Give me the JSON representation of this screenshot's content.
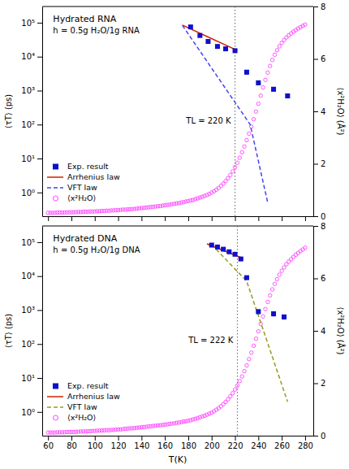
{
  "chart_data": [
    {
      "type": "scatter",
      "title": "Hydrated RNA",
      "subtitle": "h = 0.5g H₂O/1g RNA",
      "y_label": "⟨τT⟩ (ps)",
      "y2_label": "⟨x²H₂O⟩ (Å²)",
      "xlim": [
        55,
        287
      ],
      "xticks": [
        60,
        80,
        100,
        120,
        140,
        160,
        180,
        200,
        220,
        240,
        260,
        280
      ],
      "ylim": [
        0.2,
        300000
      ],
      "yticks": [
        {
          "value": 1,
          "label": "10⁰"
        },
        {
          "value": 10,
          "label": "10¹"
        },
        {
          "value": 100,
          "label": "10²"
        },
        {
          "value": 1000,
          "label": "10³"
        },
        {
          "value": 10000,
          "label": "10⁴"
        },
        {
          "value": 100000,
          "label": "10⁵"
        }
      ],
      "y2lim": [
        0,
        8
      ],
      "y2ticks": [
        0,
        2,
        4,
        6,
        8
      ],
      "log": "y",
      "legend": "lower left",
      "tick_labels": "y",
      "reference_line": {
        "x": 220,
        "label": "TL = 220 K",
        "color": "#666666",
        "line_style": "dotted"
      },
      "series": [
        {
          "name": "Exp. result",
          "type": "scatter",
          "marker": "square",
          "color": "#1010CC",
          "x": [
            182,
            190,
            197,
            205,
            212,
            220,
            230,
            240,
            253,
            265
          ],
          "values": [
            75000,
            42000,
            28000,
            20000,
            17000,
            15000,
            3500,
            1700,
            1100,
            700
          ],
          "errors": [
            6000,
            3360,
            2240,
            1600,
            1360,
            1500,
            420,
            204,
            132,
            84
          ]
        },
        {
          "name": "Arrhenius law",
          "type": "line",
          "line_style": "solid",
          "color": "#CC2200",
          "x": [
            175,
            222
          ],
          "values": [
            85113.80382023765,
            15135.612484362082
          ]
        },
        {
          "name": "VFT law",
          "type": "line",
          "line_style": "dashed",
          "color": "#4444EE",
          "x": [
            175,
            233,
            248
          ],
          "values": [
            83176.37711026709,
            100,
            0.5011872336272722
          ]
        },
        {
          "name": "⟨x²H₂O⟩",
          "type": "scatter",
          "marker": "open_circle",
          "color": "#FF44FF",
          "axis": "y2",
          "x": [
            60,
            62,
            64,
            66,
            68,
            70,
            72,
            74,
            76,
            78,
            80,
            82,
            84,
            86,
            88,
            90,
            92,
            94,
            96,
            98,
            100,
            102,
            104,
            106,
            108,
            110,
            112,
            114,
            116,
            118,
            120,
            122,
            124,
            126,
            128,
            130,
            132,
            134,
            136,
            138,
            140,
            142,
            144,
            146,
            148,
            150,
            152,
            154,
            156,
            158,
            160,
            162,
            164,
            166,
            168,
            170,
            172,
            174,
            176,
            178,
            180,
            182,
            184,
            186,
            188,
            190,
            192,
            194,
            196,
            198,
            200,
            202,
            204,
            206,
            208,
            210,
            212,
            214,
            216,
            218,
            220,
            222,
            224,
            226,
            228,
            230,
            232,
            234,
            236,
            238,
            240,
            242,
            244,
            246,
            248,
            250,
            252,
            254,
            256,
            258,
            260,
            262,
            264,
            266,
            268,
            270,
            272,
            274,
            276,
            278,
            280
          ],
          "values": [
            0.13,
            0.13,
            0.13,
            0.13,
            0.14,
            0.14,
            0.14,
            0.14,
            0.15,
            0.15,
            0.15,
            0.15,
            0.16,
            0.16,
            0.16,
            0.17,
            0.17,
            0.17,
            0.18,
            0.18,
            0.18,
            0.19,
            0.19,
            0.2,
            0.2,
            0.21,
            0.21,
            0.22,
            0.22,
            0.23,
            0.23,
            0.24,
            0.25,
            0.25,
            0.26,
            0.27,
            0.27,
            0.28,
            0.29,
            0.3,
            0.31,
            0.32,
            0.33,
            0.34,
            0.35,
            0.36,
            0.37,
            0.38,
            0.39,
            0.4,
            0.42,
            0.43,
            0.44,
            0.46,
            0.47,
            0.49,
            0.5,
            0.52,
            0.54,
            0.56,
            0.58,
            0.6,
            0.62,
            0.65,
            0.68,
            0.71,
            0.74,
            0.77,
            0.81,
            0.85,
            0.9,
            0.95,
            1.01,
            1.08,
            1.16,
            1.24,
            1.34,
            1.45,
            1.57,
            1.71,
            1.87,
            2.04,
            2.23,
            2.44,
            2.66,
            2.9,
            3.15,
            3.42,
            3.7,
            3.99,
            4.29,
            4.6,
            4.91,
            5.2,
            5.48,
            5.73,
            5.96,
            6.16,
            6.33,
            6.48,
            6.61,
            6.72,
            6.82,
            6.9,
            6.97,
            7.04,
            7.1,
            7.16,
            7.21,
            7.26,
            7.31
          ]
        }
      ]
    },
    {
      "type": "scatter",
      "title": "Hydrated DNA",
      "subtitle": "h = 0.5g H₂O/1g DNA",
      "x_label": "T(K)",
      "y_label": "⟨τT⟩ (ps)",
      "y2_label": "⟨x²H₂O⟩ (Å²)",
      "xlim": [
        55,
        287
      ],
      "xticks": [
        60,
        80,
        100,
        120,
        140,
        160,
        180,
        200,
        220,
        240,
        260,
        280
      ],
      "ylim": [
        0.2,
        300000
      ],
      "yticks": [
        {
          "value": 1,
          "label": "10⁰"
        },
        {
          "value": 10,
          "label": "10¹"
        },
        {
          "value": 100,
          "label": "10²"
        },
        {
          "value": 1000,
          "label": "10³"
        },
        {
          "value": 10000,
          "label": "10⁴"
        },
        {
          "value": 100000,
          "label": "10⁵"
        }
      ],
      "y2lim": [
        0,
        8
      ],
      "y2ticks": [
        0,
        2,
        4,
        6,
        8
      ],
      "log": "y",
      "legend": "lower left",
      "reference_line": {
        "x": 222,
        "label": "TL = 222 K",
        "color": "#666666",
        "line_style": "dotted"
      },
      "series": [
        {
          "name": "Exp. result",
          "type": "scatter",
          "marker": "square",
          "color": "#1010CC",
          "x": [
            200,
            205,
            210,
            215,
            220,
            225,
            230,
            240,
            253,
            262
          ],
          "values": [
            82000,
            72000,
            62000,
            52000,
            44000,
            32000,
            9000,
            900,
            780,
            630
          ],
          "errors": [
            4920,
            4320,
            3720,
            3120,
            2640,
            2560,
            900,
            108,
            109.2,
            88.2
          ]
        },
        {
          "name": "Arrhenius law",
          "type": "line",
          "line_style": "solid",
          "color": "#CC2200",
          "x": [
            196,
            227
          ],
          "values": [
            89125.09381337457,
            33113.11214825911
          ]
        },
        {
          "name": "VFT law",
          "type": "line",
          "line_style": "dashed",
          "color": "#999922",
          "x": [
            200,
            230,
            265
          ],
          "values": [
            85113.80382023765,
            7079.457843841379,
            1.9952623149688795
          ]
        },
        {
          "name": "⟨x²H₂O⟩",
          "type": "scatter",
          "marker": "open_circle",
          "color": "#FF44FF",
          "axis": "y2",
          "x": [
            60,
            62,
            64,
            66,
            68,
            70,
            72,
            74,
            76,
            78,
            80,
            82,
            84,
            86,
            88,
            90,
            92,
            94,
            96,
            98,
            100,
            102,
            104,
            106,
            108,
            110,
            112,
            114,
            116,
            118,
            120,
            122,
            124,
            126,
            128,
            130,
            132,
            134,
            136,
            138,
            140,
            142,
            144,
            146,
            148,
            150,
            152,
            154,
            156,
            158,
            160,
            162,
            164,
            166,
            168,
            170,
            172,
            174,
            176,
            178,
            180,
            182,
            184,
            186,
            188,
            190,
            192,
            194,
            196,
            198,
            200,
            202,
            204,
            206,
            208,
            210,
            212,
            214,
            216,
            218,
            220,
            222,
            224,
            226,
            228,
            230,
            232,
            234,
            236,
            238,
            240,
            242,
            244,
            246,
            248,
            250,
            252,
            254,
            256,
            258,
            260,
            262,
            264,
            266,
            268,
            270,
            272,
            274,
            276,
            278,
            280
          ],
          "values": [
            0.12,
            0.12,
            0.12,
            0.12,
            0.13,
            0.13,
            0.13,
            0.13,
            0.14,
            0.14,
            0.14,
            0.14,
            0.15,
            0.15,
            0.16,
            0.16,
            0.16,
            0.17,
            0.17,
            0.18,
            0.18,
            0.19,
            0.19,
            0.2,
            0.2,
            0.21,
            0.21,
            0.22,
            0.22,
            0.23,
            0.24,
            0.24,
            0.25,
            0.26,
            0.27,
            0.28,
            0.28,
            0.29,
            0.3,
            0.31,
            0.32,
            0.33,
            0.34,
            0.35,
            0.36,
            0.37,
            0.38,
            0.39,
            0.4,
            0.41,
            0.42,
            0.43,
            0.45,
            0.46,
            0.47,
            0.49,
            0.5,
            0.52,
            0.54,
            0.55,
            0.57,
            0.59,
            0.62,
            0.64,
            0.67,
            0.7,
            0.73,
            0.76,
            0.8,
            0.84,
            0.88,
            0.93,
            0.99,
            1.05,
            1.12,
            1.2,
            1.29,
            1.39,
            1.5,
            1.62,
            1.76,
            1.91,
            2.08,
            2.26,
            2.46,
            2.68,
            2.92,
            3.17,
            3.43,
            3.7,
            3.98,
            4.26,
            4.55,
            4.83,
            5.1,
            5.35,
            5.58,
            5.79,
            5.97,
            6.14,
            6.29,
            6.42,
            6.54,
            6.64,
            6.73,
            6.82,
            6.9,
            6.97,
            7.04,
            7.1,
            7.17
          ]
        }
      ]
    }
  ]
}
